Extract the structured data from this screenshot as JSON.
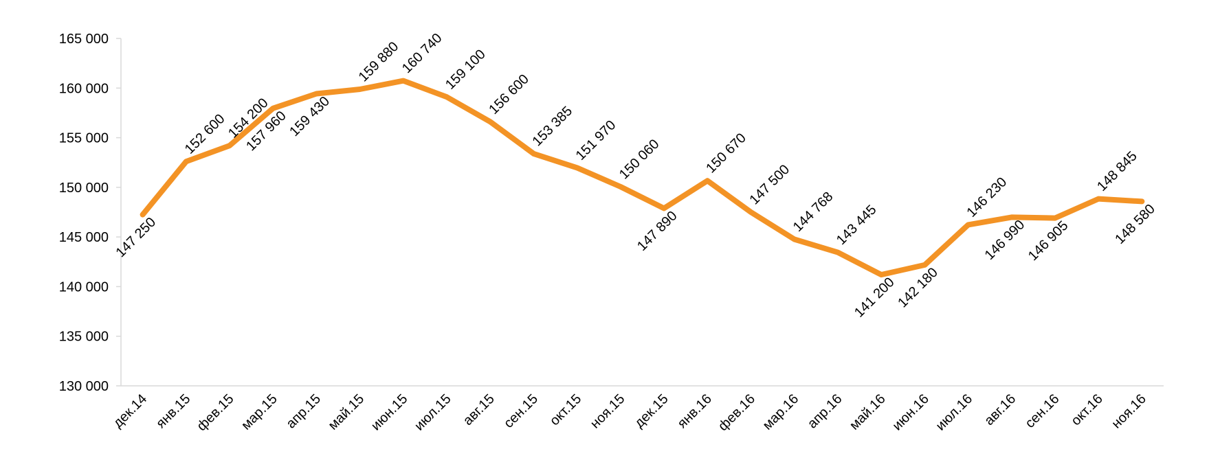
{
  "chart_data": {
    "type": "line",
    "title": "",
    "xlabel": "",
    "ylabel": "",
    "ylim": [
      130000,
      165000
    ],
    "yticks": [
      130000,
      135000,
      140000,
      145000,
      150000,
      155000,
      160000,
      165000
    ],
    "ytick_labels": [
      "130 000",
      "135 000",
      "140 000",
      "145 000",
      "150 000",
      "155 000",
      "160 000",
      "165 000"
    ],
    "grid": false,
    "legend": "none",
    "categories": [
      "дек.14",
      "янв.15",
      "фев.15",
      "мар.15",
      "апр.15",
      "май.15",
      "июн.15",
      "июл.15",
      "авг.15",
      "сен.15",
      "окт.15",
      "ноя.15",
      "дек.15",
      "янв.16",
      "фев.16",
      "мар.16",
      "апр.16",
      "май.16",
      "июн.16",
      "июл.16",
      "авг.16",
      "сен.16",
      "окт.16",
      "ноя.16"
    ],
    "series": [
      {
        "color": "#f39325",
        "values": [
          147250,
          152600,
          154200,
          157960,
          159430,
          159880,
          160740,
          159100,
          156600,
          153385,
          151970,
          150060,
          147890,
          150670,
          147500,
          144768,
          143445,
          141200,
          142180,
          146230,
          146990,
          146905,
          148845,
          148580
        ],
        "data_labels": [
          "147 250",
          "152 600",
          "154 200",
          "157 960",
          "159 430",
          "159 880",
          "160 740",
          "159 100",
          "156 600",
          "153 385",
          "151 970",
          "150 060",
          "147 890",
          "150 670",
          "147 500",
          "144 768",
          "143 445",
          "141 200",
          "142 180",
          "146 230",
          "146 990",
          "146 905",
          "148 845",
          "148 580"
        ]
      }
    ]
  }
}
